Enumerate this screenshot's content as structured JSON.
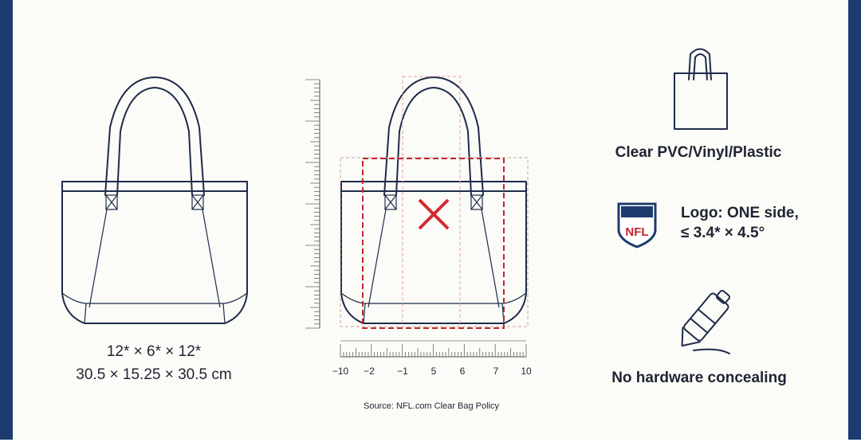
{
  "dimensions": {
    "inches": "12* × 6* × 12*",
    "cm": "30.5 × 15.25 × 30.5 cm"
  },
  "ruler_labels": [
    "−10",
    "−2",
    "−1",
    "5",
    "6",
    "7",
    "10"
  ],
  "source": "Source: NFL.com Clear Bag Policy",
  "logo_text": "NFL",
  "features": [
    "Clear PVC/Vinyl/Plastic",
    "Logo: ONE side,",
    "≤ 3.4* × 4.5°",
    "No hardware concealing"
  ]
}
